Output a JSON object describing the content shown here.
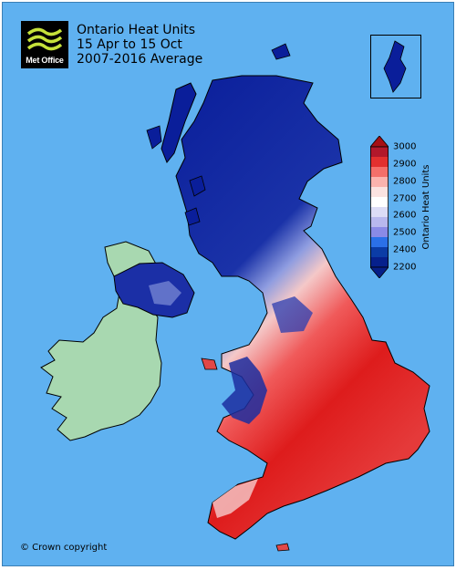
{
  "publisher": {
    "logo_text": "Met Office"
  },
  "title": {
    "line1": "Ontario Heat Units",
    "line2": "15 Apr to 15 Oct",
    "line3": "2007-2016 Average"
  },
  "legend": {
    "label": "Ontario Heat Units",
    "ticks": [
      "3000",
      "2900",
      "2800",
      "2700",
      "2600",
      "2500",
      "2400",
      "2200"
    ],
    "colors": [
      "#b2182b",
      "#e2302f",
      "#f46f6a",
      "#fbb3ae",
      "#fbe3e1",
      "#ffffff",
      "#dcdcf6",
      "#b8b8ee",
      "#8a8ae6",
      "#2b70e8",
      "#0b3ca6",
      "#06208c"
    ],
    "over_color": "#a50f15",
    "under_color": "#061f88"
  },
  "map": {
    "sea_color": "#5fb1f0",
    "ireland_color": "#a8d8b0",
    "cold_color": "#0b1f9c",
    "warm_color": "#e01818"
  },
  "copyright": "© Crown copyright"
}
